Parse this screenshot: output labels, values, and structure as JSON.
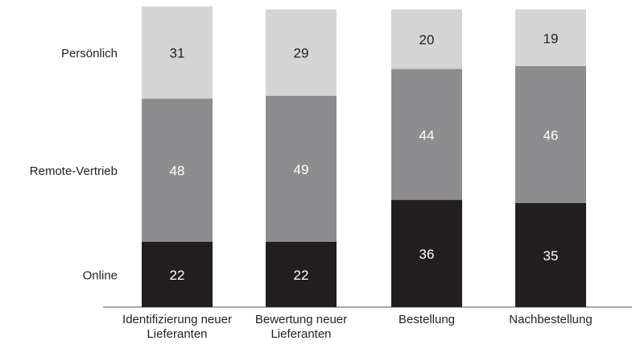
{
  "chart_data": {
    "type": "stacked_bar",
    "categories": [
      "Identifizierung neuer Lieferanten",
      "Bewertung neuer Lieferanten",
      "Bestellung",
      "Nachbestellung"
    ],
    "series": [
      {
        "name": "Online",
        "color": "#231f20",
        "values": [
          22,
          22,
          36,
          35
        ]
      },
      {
        "name": "Remote-Vertrieb",
        "color": "#8d8d8f",
        "values": [
          48,
          49,
          44,
          46
        ]
      },
      {
        "name": "Persönlich",
        "color": "#d4d4d4",
        "values": [
          31,
          29,
          20,
          19
        ]
      }
    ],
    "ylim": [
      0,
      101
    ]
  }
}
